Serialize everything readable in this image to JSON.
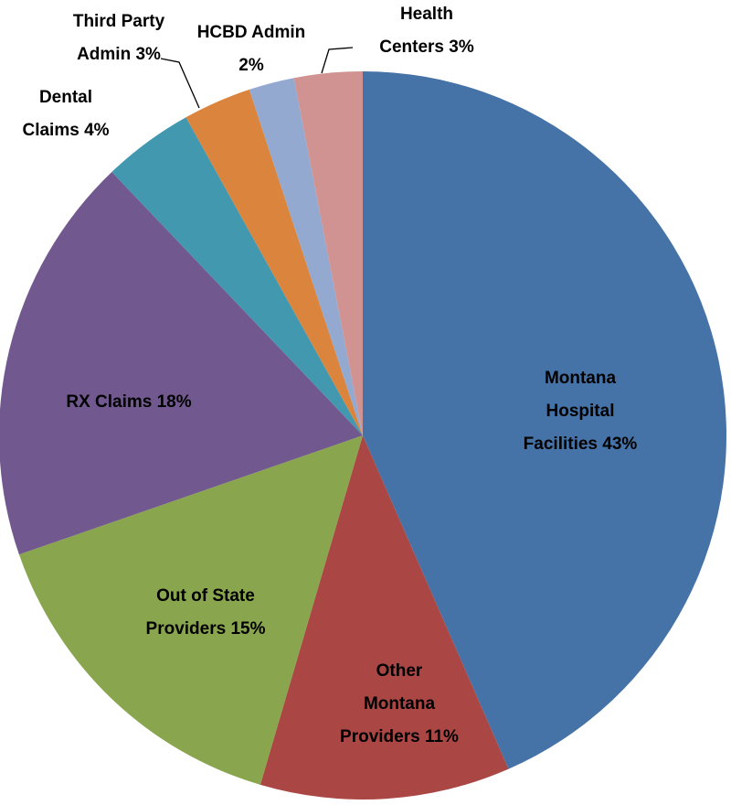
{
  "chart_data": {
    "type": "pie",
    "categories": [
      "Montana Hospital Facilities",
      "Other Montana Providers",
      "Out of State Providers",
      "RX Claims",
      "Dental Claims",
      "Third Party Admin",
      "HCBD Admin",
      "Health Centers"
    ],
    "values": [
      43,
      11,
      15,
      18,
      4,
      3,
      2,
      3
    ],
    "value_labels": [
      "43%",
      "11%",
      "15%",
      "18%",
      "4%",
      "3%",
      "2%",
      "3%"
    ],
    "colors": [
      "#4572a7",
      "#aa4643",
      "#89a54e",
      "#71588f",
      "#4198af",
      "#db843d",
      "#93a9cf",
      "#d19392"
    ]
  }
}
